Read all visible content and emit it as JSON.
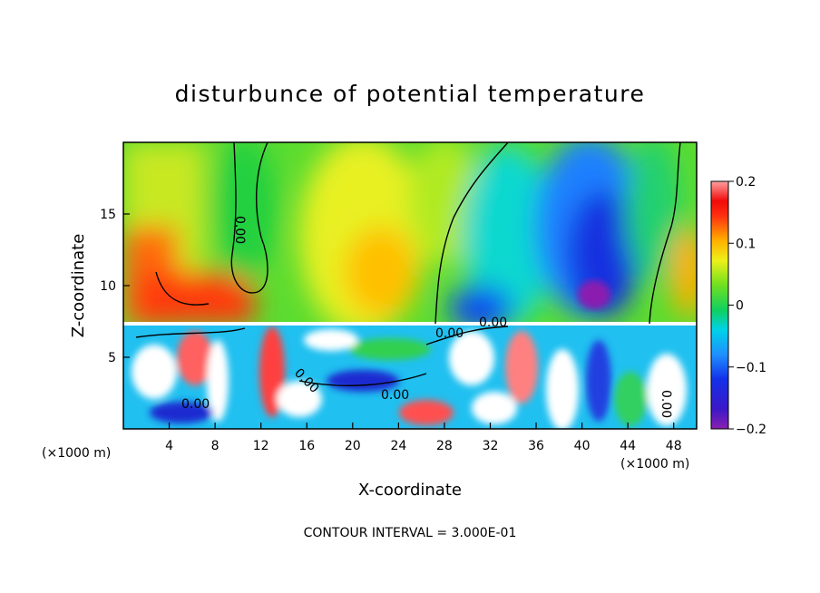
{
  "chart_data": {
    "type": "heatmap",
    "title": "disturbunce of potential temperature",
    "xlabel": "X-coordinate",
    "ylabel": "Z-coordinate",
    "x_unit": "(×1000 m)",
    "z_unit": "(×1000 m)",
    "xlim": [
      0,
      50
    ],
    "ylim": [
      0,
      20
    ],
    "x_ticks": [
      "4",
      "8",
      "12",
      "16",
      "20",
      "24",
      "28",
      "32",
      "36",
      "40",
      "44",
      "48"
    ],
    "y_ticks": [
      "5",
      "10",
      "15"
    ],
    "colorbar": {
      "range": [
        -0.2,
        0.2
      ],
      "tick_labels": [
        "0.2",
        "0.1",
        "0",
        "−0.1",
        "−0.2"
      ],
      "tick_values": [
        0.2,
        0.1,
        0,
        -0.1,
        -0.2
      ]
    },
    "contour_labels": [
      "0.00",
      "0.00",
      "0.00",
      "0.00",
      "0.00",
      "0.00",
      "0.00"
    ],
    "footer": "CONTOUR INTERVAL = 3.000E-01",
    "grid": false
  }
}
